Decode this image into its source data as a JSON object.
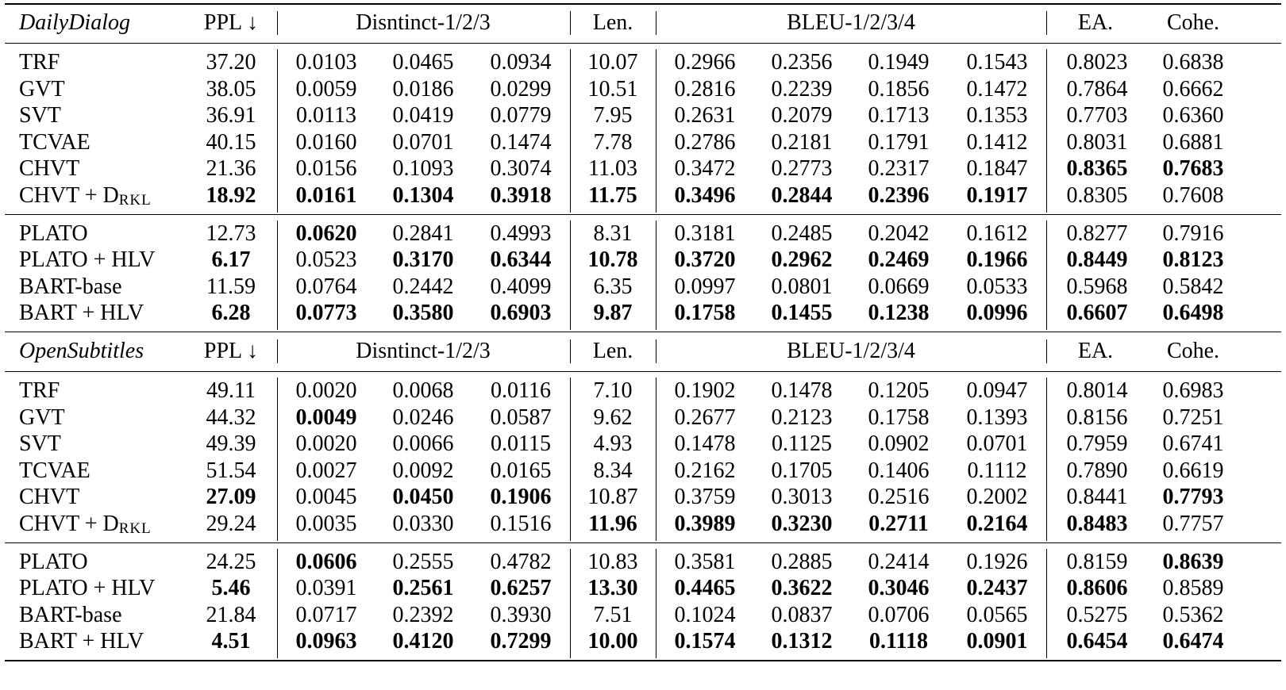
{
  "header_labels": {
    "ppl": "PPL ↓",
    "distinct": "Disntinct-1/2/3",
    "len": "Len.",
    "bleu": "BLEU-1/2/3/4",
    "ea": "EA.",
    "cohe": "Cohe."
  },
  "sections": [
    {
      "dataset": "DailyDialog",
      "groups": [
        [
          {
            "name": "TRF",
            "values": [
              "37.20",
              "0.0103",
              "0.0465",
              "0.0934",
              "10.07",
              "0.2966",
              "0.2356",
              "0.1949",
              "0.1543",
              "0.8023",
              "0.6838"
            ],
            "bold": []
          },
          {
            "name": "GVT",
            "values": [
              "38.05",
              "0.0059",
              "0.0186",
              "0.0299",
              "10.51",
              "0.2816",
              "0.2239",
              "0.1856",
              "0.1472",
              "0.7864",
              "0.6662"
            ],
            "bold": []
          },
          {
            "name": "SVT",
            "values": [
              "36.91",
              "0.0113",
              "0.0419",
              "0.0779",
              "7.95",
              "0.2631",
              "0.2079",
              "0.1713",
              "0.1353",
              "0.7703",
              "0.6360"
            ],
            "bold": []
          },
          {
            "name": "TCVAE",
            "values": [
              "40.15",
              "0.0160",
              "0.0701",
              "0.1474",
              "7.78",
              "0.2786",
              "0.2181",
              "0.1791",
              "0.1412",
              "0.8031",
              "0.6881"
            ],
            "bold": []
          },
          {
            "name": "CHVT",
            "values": [
              "21.36",
              "0.0156",
              "0.1093",
              "0.3074",
              "11.03",
              "0.3472",
              "0.2773",
              "0.2317",
              "0.1847",
              "0.8365",
              "0.7683"
            ],
            "bold": [
              9,
              10
            ]
          },
          {
            "name": "CHVT + D",
            "name_sub": "RKL",
            "values": [
              "18.92",
              "0.0161",
              "0.1304",
              "0.3918",
              "11.75",
              "0.3496",
              "0.2844",
              "0.2396",
              "0.1917",
              "0.8305",
              "0.7608"
            ],
            "bold": [
              0,
              1,
              2,
              3,
              4,
              5,
              6,
              7,
              8
            ]
          }
        ],
        [
          {
            "name": "PLATO",
            "values": [
              "12.73",
              "0.0620",
              "0.2841",
              "0.4993",
              "8.31",
              "0.3181",
              "0.2485",
              "0.2042",
              "0.1612",
              "0.8277",
              "0.7916"
            ],
            "bold": [
              1
            ]
          },
          {
            "name": "PLATO + HLV",
            "values": [
              "6.17",
              "0.0523",
              "0.3170",
              "0.6344",
              "10.78",
              "0.3720",
              "0.2962",
              "0.2469",
              "0.1966",
              "0.8449",
              "0.8123"
            ],
            "bold": [
              0,
              2,
              3,
              4,
              5,
              6,
              7,
              8,
              9,
              10
            ]
          },
          {
            "name": "BART-base",
            "values": [
              "11.59",
              "0.0764",
              "0.2442",
              "0.4099",
              "6.35",
              "0.0997",
              "0.0801",
              "0.0669",
              "0.0533",
              "0.5968",
              "0.5842"
            ],
            "bold": []
          },
          {
            "name": "BART + HLV",
            "values": [
              "6.28",
              "0.0773",
              "0.3580",
              "0.6903",
              "9.87",
              "0.1758",
              "0.1455",
              "0.1238",
              "0.0996",
              "0.6607",
              "0.6498"
            ],
            "bold": [
              0,
              1,
              2,
              3,
              4,
              5,
              6,
              7,
              8,
              9,
              10
            ]
          }
        ]
      ]
    },
    {
      "dataset": "OpenSubtitles",
      "groups": [
        [
          {
            "name": "TRF",
            "values": [
              "49.11",
              "0.0020",
              "0.0068",
              "0.0116",
              "7.10",
              "0.1902",
              "0.1478",
              "0.1205",
              "0.0947",
              "0.8014",
              "0.6983"
            ],
            "bold": []
          },
          {
            "name": "GVT",
            "values": [
              "44.32",
              "0.0049",
              "0.0246",
              "0.0587",
              "9.62",
              "0.2677",
              "0.2123",
              "0.1758",
              "0.1393",
              "0.8156",
              "0.7251"
            ],
            "bold": [
              1
            ]
          },
          {
            "name": "SVT",
            "values": [
              "49.39",
              "0.0020",
              "0.0066",
              "0.0115",
              "4.93",
              "0.1478",
              "0.1125",
              "0.0902",
              "0.0701",
              "0.7959",
              "0.6741"
            ],
            "bold": []
          },
          {
            "name": "TCVAE",
            "values": [
              "51.54",
              "0.0027",
              "0.0092",
              "0.0165",
              "8.34",
              "0.2162",
              "0.1705",
              "0.1406",
              "0.1112",
              "0.7890",
              "0.6619"
            ],
            "bold": []
          },
          {
            "name": "CHVT",
            "values": [
              "27.09",
              "0.0045",
              "0.0450",
              "0.1906",
              "10.87",
              "0.3759",
              "0.3013",
              "0.2516",
              "0.2002",
              "0.8441",
              "0.7793"
            ],
            "bold": [
              0,
              2,
              3,
              10
            ]
          },
          {
            "name": "CHVT + D",
            "name_sub": "RKL",
            "values": [
              "29.24",
              "0.0035",
              "0.0330",
              "0.1516",
              "11.96",
              "0.3989",
              "0.3230",
              "0.2711",
              "0.2164",
              "0.8483",
              "0.7757"
            ],
            "bold": [
              4,
              5,
              6,
              7,
              8,
              9
            ]
          }
        ],
        [
          {
            "name": "PLATO",
            "values": [
              "24.25",
              "0.0606",
              "0.2555",
              "0.4782",
              "10.83",
              "0.3581",
              "0.2885",
              "0.2414",
              "0.1926",
              "0.8159",
              "0.8639"
            ],
            "bold": [
              1,
              10
            ]
          },
          {
            "name": "PLATO + HLV",
            "values": [
              "5.46",
              "0.0391",
              "0.2561",
              "0.6257",
              "13.30",
              "0.4465",
              "0.3622",
              "0.3046",
              "0.2437",
              "0.8606",
              "0.8589"
            ],
            "bold": [
              0,
              2,
              3,
              4,
              5,
              6,
              7,
              8,
              9
            ]
          },
          {
            "name": "BART-base",
            "values": [
              "21.84",
              "0.0717",
              "0.2392",
              "0.3930",
              "7.51",
              "0.1024",
              "0.0837",
              "0.0706",
              "0.0565",
              "0.5275",
              "0.5362"
            ],
            "bold": []
          },
          {
            "name": "BART + HLV",
            "values": [
              "4.51",
              "0.0963",
              "0.4120",
              "0.7299",
              "10.00",
              "0.1574",
              "0.1312",
              "0.1118",
              "0.0901",
              "0.6454",
              "0.6474"
            ],
            "bold": [
              0,
              1,
              2,
              3,
              4,
              5,
              6,
              7,
              8,
              9,
              10
            ]
          }
        ]
      ]
    }
  ]
}
